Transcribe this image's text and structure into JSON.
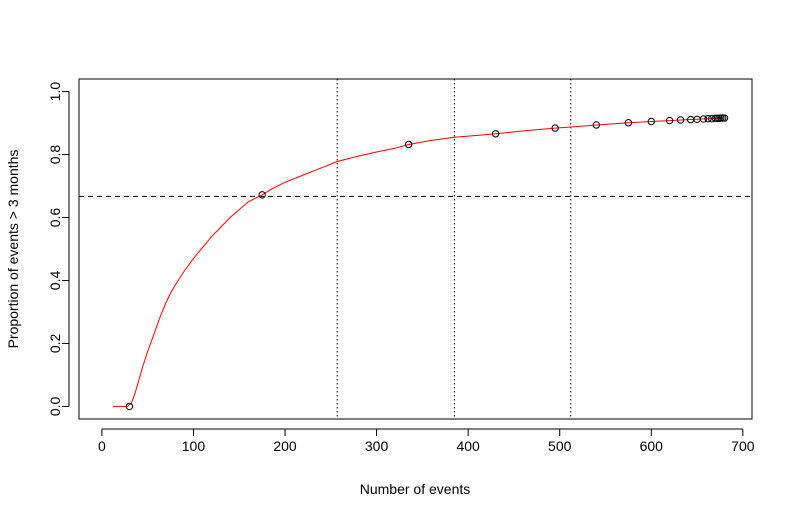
{
  "chart_data": {
    "type": "line",
    "title": "",
    "xlabel": "Number of events",
    "ylabel": "Proportion of events > 3 months",
    "xlim": [
      -25,
      710
    ],
    "ylim": [
      -0.04,
      1.04
    ],
    "x_ticks": [
      0,
      100,
      200,
      300,
      400,
      500,
      600,
      700
    ],
    "y_ticks": [
      0.0,
      0.2,
      0.4,
      0.6,
      0.8,
      1.0
    ],
    "x_tick_labels": [
      "0",
      "100",
      "200",
      "300",
      "400",
      "500",
      "600",
      "700"
    ],
    "y_tick_labels": [
      "0.0",
      "0.2",
      "0.4",
      "0.6",
      "0.8",
      "1.0"
    ],
    "grid": false,
    "curve": {
      "color": "#ff0000",
      "x": [
        12,
        28,
        32,
        36,
        40,
        45,
        50,
        55,
        60,
        65,
        70,
        75,
        80,
        90,
        100,
        110,
        120,
        130,
        140,
        150,
        160,
        170,
        175,
        185,
        200,
        220,
        240,
        257,
        280,
        300,
        320,
        335,
        360,
        385,
        410,
        430,
        460,
        495,
        520,
        540,
        560,
        575,
        600,
        620,
        640,
        660,
        680
      ],
      "y": [
        0.0,
        0.0,
        0.01,
        0.04,
        0.08,
        0.13,
        0.175,
        0.215,
        0.255,
        0.295,
        0.33,
        0.36,
        0.385,
        0.43,
        0.47,
        0.505,
        0.54,
        0.57,
        0.6,
        0.625,
        0.65,
        0.665,
        0.672,
        0.69,
        0.712,
        0.735,
        0.758,
        0.778,
        0.795,
        0.808,
        0.82,
        0.832,
        0.845,
        0.855,
        0.861,
        0.866,
        0.875,
        0.884,
        0.889,
        0.894,
        0.898,
        0.901,
        0.905,
        0.908,
        0.911,
        0.914,
        0.916
      ]
    },
    "points": {
      "x": [
        30,
        175,
        335,
        430,
        495,
        540,
        575,
        600,
        620,
        632,
        643,
        650,
        657,
        662,
        666,
        670,
        672,
        674,
        676,
        678,
        680
      ],
      "y": [
        0.0,
        0.672,
        0.832,
        0.866,
        0.884,
        0.894,
        0.901,
        0.905,
        0.908,
        0.91,
        0.911,
        0.912,
        0.913,
        0.914,
        0.914,
        0.915,
        0.915,
        0.915,
        0.916,
        0.916,
        0.916
      ]
    },
    "hlines": [
      {
        "y": 0.667,
        "style": "dashed"
      }
    ],
    "vlines": [
      {
        "x": 257,
        "style": "dotted"
      },
      {
        "x": 385,
        "style": "dotted"
      },
      {
        "x": 512,
        "style": "dotted"
      }
    ]
  }
}
